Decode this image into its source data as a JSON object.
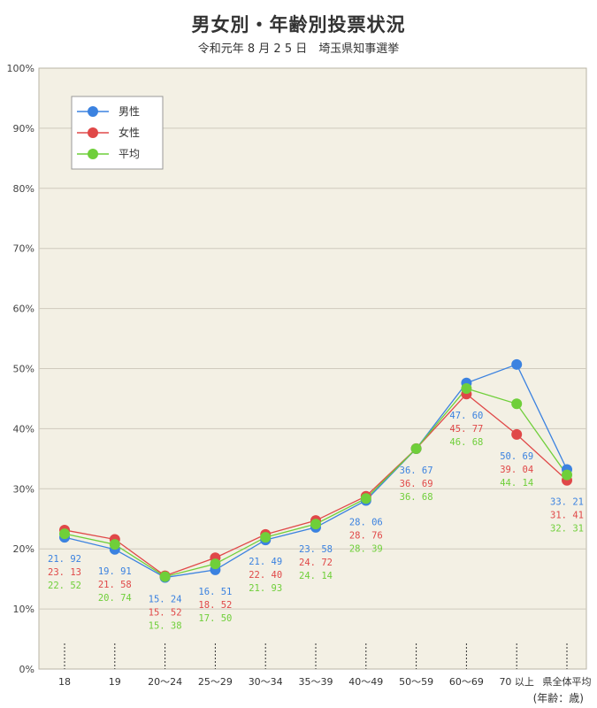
{
  "chart_data": {
    "type": "line",
    "title": "男女別・年齢別投票状況",
    "subtitle": "令和元年 8 月 2 5 日　埼玉県知事選挙",
    "x_unit_label": "(年齢：歳)",
    "categories": [
      "18",
      "19",
      "20～24",
      "25～29",
      "30～34",
      "35～39",
      "40～49",
      "50～59",
      "60～69",
      "70 以上",
      "県全体平均"
    ],
    "y_ticks": [
      "0%",
      "10%",
      "20%",
      "30%",
      "40%",
      "50%",
      "60%",
      "70%",
      "80%",
      "90%",
      "100%"
    ],
    "ylim": [
      0,
      100
    ],
    "grid": true,
    "legend_placement": "top-left",
    "series": [
      {
        "name": "男性",
        "color": "#3b82e0",
        "values": [
          21.92,
          19.91,
          15.24,
          16.51,
          21.49,
          23.58,
          28.06,
          36.67,
          47.6,
          50.69,
          33.21
        ],
        "labels": [
          "21. 92",
          "19. 91",
          "15. 24",
          "16. 51",
          "21. 49",
          "23. 58",
          "28. 06",
          "36. 67",
          "47. 60",
          "50. 69",
          "33. 21"
        ]
      },
      {
        "name": "女性",
        "color": "#e04848",
        "values": [
          23.13,
          21.58,
          15.52,
          18.52,
          22.4,
          24.72,
          28.76,
          36.69,
          45.77,
          39.04,
          31.41
        ],
        "labels": [
          "23. 13",
          "21. 58",
          "15. 52",
          "18. 52",
          "22. 40",
          "24. 72",
          "28. 76",
          "36. 69",
          "45. 77",
          "39. 04",
          "31. 41"
        ]
      },
      {
        "name": "平均",
        "color": "#6fcf3a",
        "values": [
          22.52,
          20.74,
          15.38,
          17.5,
          21.93,
          24.14,
          28.39,
          36.68,
          46.68,
          44.14,
          32.31
        ],
        "labels": [
          "22. 52",
          "20. 74",
          "15. 38",
          "17. 50",
          "21. 93",
          "24. 14",
          "28. 39",
          "36. 68",
          "46. 68",
          "44. 14",
          "32. 31"
        ]
      }
    ]
  }
}
